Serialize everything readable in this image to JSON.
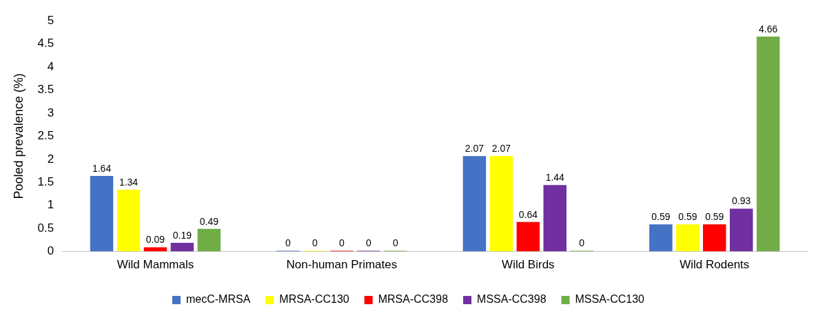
{
  "chart_data": {
    "type": "bar",
    "ylabel": "Pooled prevalence (%)",
    "categories": [
      "Wild Mammals",
      "Non-human Primates",
      "Wild Birds",
      "Wild Rodents"
    ],
    "series": [
      {
        "name": "mecC-MRSA",
        "color": "#4472c4",
        "values": [
          1.64,
          0,
          2.07,
          0.59
        ]
      },
      {
        "name": "MRSA-CC130",
        "color": "#ffff00",
        "values": [
          1.34,
          0,
          2.07,
          0.59
        ]
      },
      {
        "name": "MRSA-CC398",
        "color": "#ff0000",
        "values": [
          0.09,
          0,
          0.64,
          0.59
        ]
      },
      {
        "name": "MSSA-CC398",
        "color": "#7030a0",
        "values": [
          0.19,
          0,
          1.44,
          0.93
        ]
      },
      {
        "name": "MSSA-CC130",
        "color": "#70ad47",
        "values": [
          0.49,
          0,
          0,
          4.66
        ]
      }
    ],
    "ylim": [
      0,
      5
    ],
    "yticks": [
      0,
      0.5,
      1,
      1.5,
      2,
      2.5,
      3,
      3.5,
      4,
      4.5,
      5
    ],
    "grid": false,
    "legend": "bottom",
    "data_labels": true
  }
}
